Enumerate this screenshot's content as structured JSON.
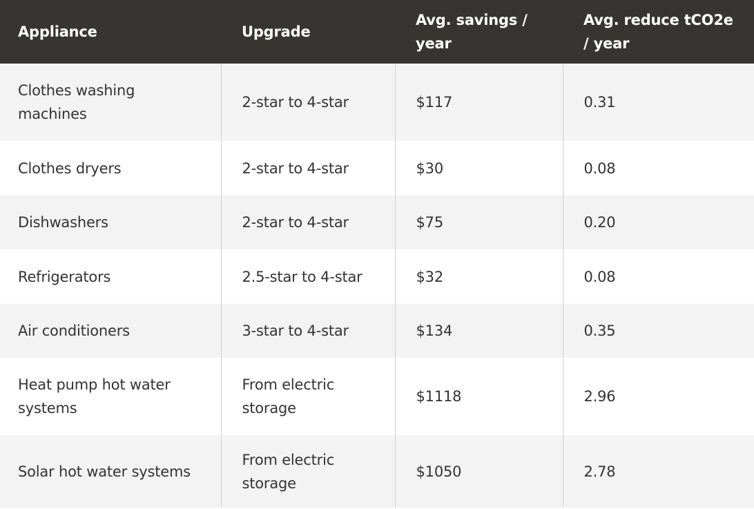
{
  "table": {
    "headers": [
      "Appliance",
      "Upgrade",
      "Avg. savings / year",
      "Avg. reduce tCO2e / year"
    ],
    "rows": [
      {
        "appliance": "Clothes washing machines",
        "upgrade": "2-star to 4-star",
        "savings": "$117",
        "reduction": "0.31"
      },
      {
        "appliance": "Clothes dryers",
        "upgrade": "2-star to 4-star",
        "savings": "$30",
        "reduction": "0.08"
      },
      {
        "appliance": "Dishwashers",
        "upgrade": "2-star to 4-star",
        "savings": "$75",
        "reduction": "0.20"
      },
      {
        "appliance": "Refrigerators",
        "upgrade": "2.5-star to 4-star",
        "savings": "$32",
        "reduction": "0.08"
      },
      {
        "appliance": "Air conditioners",
        "upgrade": "3-star to 4-star",
        "savings": "$134",
        "reduction": "0.35"
      },
      {
        "appliance": "Heat pump hot water systems",
        "upgrade": "From electric storage",
        "savings": "$1118",
        "reduction": "2.96"
      },
      {
        "appliance": "Solar hot water systems",
        "upgrade": "From electric storage",
        "savings": "$1050",
        "reduction": "2.78"
      }
    ]
  },
  "colors": {
    "header_bg": "#363531",
    "header_text": "#ffffff",
    "row_shade": "#f3f3f3",
    "row_plain": "#ffffff",
    "cell_text": "#333333",
    "divider": "#cfcfcf"
  }
}
